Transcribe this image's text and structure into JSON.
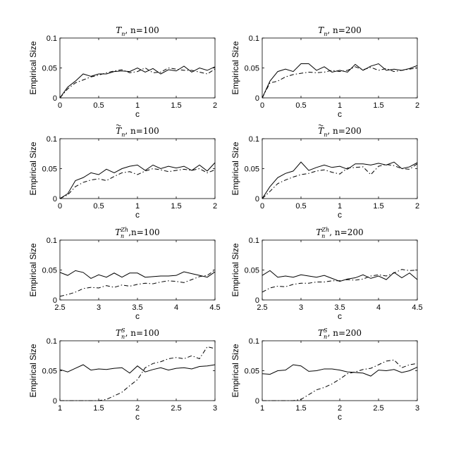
{
  "chart_data": [
    {
      "type": "line",
      "title": "T_n, n=100",
      "title_main": "T",
      "title_sub": "n",
      "title_sup": "",
      "title_tilde": false,
      "title_rest": ", n=100",
      "xlabel": "c",
      "ylabel": "Empirical Size",
      "xlim": [
        0,
        2
      ],
      "ylim": [
        0,
        0.1
      ],
      "xticks": [
        "0",
        "0.5",
        "1",
        "1.5",
        "2"
      ],
      "yticks": [
        "0",
        "0.05",
        "0.1"
      ],
      "series": [
        {
          "style": "solid",
          "x": [
            0,
            0.1,
            0.2,
            0.3,
            0.4,
            0.5,
            0.6,
            0.7,
            0.8,
            0.9,
            1.0,
            1.1,
            1.2,
            1.3,
            1.4,
            1.5,
            1.6,
            1.7,
            1.8,
            1.9,
            2.0
          ],
          "values": [
            0,
            0.018,
            0.028,
            0.04,
            0.036,
            0.04,
            0.04,
            0.044,
            0.045,
            0.044,
            0.05,
            0.043,
            0.049,
            0.04,
            0.047,
            0.045,
            0.053,
            0.043,
            0.05,
            0.046,
            0.052
          ]
        },
        {
          "style": "dashdot",
          "x": [
            0,
            0.1,
            0.2,
            0.3,
            0.4,
            0.5,
            0.6,
            0.7,
            0.8,
            0.9,
            1.0,
            1.1,
            1.2,
            1.3,
            1.4,
            1.5,
            1.6,
            1.7,
            1.8,
            1.9,
            2.0
          ],
          "values": [
            0,
            0.015,
            0.025,
            0.03,
            0.035,
            0.038,
            0.042,
            0.045,
            0.047,
            0.042,
            0.044,
            0.05,
            0.042,
            0.043,
            0.05,
            0.048,
            0.046,
            0.046,
            0.043,
            0.04,
            0.048
          ]
        }
      ]
    },
    {
      "type": "line",
      "title": "T_n, n=200",
      "title_main": "T",
      "title_sub": "n",
      "title_sup": "",
      "title_tilde": false,
      "title_rest": ", n=200",
      "xlabel": "c",
      "ylabel": "Empirical Size",
      "xlim": [
        0,
        2
      ],
      "ylim": [
        0,
        0.1
      ],
      "xticks": [
        "0",
        "0.5",
        "1",
        "1.5",
        "2"
      ],
      "yticks": [
        "0",
        "0.05",
        "0.1"
      ],
      "series": [
        {
          "style": "solid",
          "x": [
            0,
            0.1,
            0.2,
            0.3,
            0.4,
            0.5,
            0.6,
            0.7,
            0.8,
            0.9,
            1.0,
            1.1,
            1.2,
            1.3,
            1.4,
            1.5,
            1.6,
            1.7,
            1.8,
            1.9,
            2.0
          ],
          "values": [
            0,
            0.028,
            0.044,
            0.048,
            0.044,
            0.057,
            0.057,
            0.046,
            0.052,
            0.043,
            0.046,
            0.043,
            0.056,
            0.046,
            0.053,
            0.057,
            0.046,
            0.048,
            0.046,
            0.049,
            0.054
          ]
        },
        {
          "style": "dashdot",
          "x": [
            0,
            0.1,
            0.2,
            0.3,
            0.4,
            0.5,
            0.6,
            0.7,
            0.8,
            0.9,
            1.0,
            1.1,
            1.2,
            1.3,
            1.4,
            1.5,
            1.6,
            1.7,
            1.8,
            1.9,
            2.0
          ],
          "values": [
            0,
            0.025,
            0.028,
            0.035,
            0.039,
            0.041,
            0.043,
            0.042,
            0.043,
            0.046,
            0.044,
            0.046,
            0.052,
            0.047,
            0.051,
            0.046,
            0.049,
            0.044,
            0.046,
            0.048,
            0.05
          ]
        }
      ]
    },
    {
      "type": "line",
      "title": "T~_n, n=100",
      "title_main": "T",
      "title_sub": "n",
      "title_sup": "",
      "title_tilde": true,
      "title_rest": ", n=100",
      "xlabel": "c",
      "ylabel": "Empirical Size",
      "xlim": [
        0,
        2
      ],
      "ylim": [
        0,
        0.1
      ],
      "xticks": [
        "0",
        "0.5",
        "1",
        "1.5",
        "2"
      ],
      "yticks": [
        "0",
        "0.05",
        "0.1"
      ],
      "series": [
        {
          "style": "solid",
          "x": [
            0,
            0.1,
            0.2,
            0.3,
            0.4,
            0.5,
            0.6,
            0.7,
            0.8,
            0.9,
            1.0,
            1.1,
            1.2,
            1.3,
            1.4,
            1.5,
            1.6,
            1.7,
            1.8,
            1.9,
            2.0
          ],
          "values": [
            0,
            0.008,
            0.03,
            0.035,
            0.043,
            0.04,
            0.049,
            0.043,
            0.05,
            0.054,
            0.056,
            0.047,
            0.056,
            0.05,
            0.054,
            0.051,
            0.054,
            0.047,
            0.056,
            0.046,
            0.06
          ]
        },
        {
          "style": "dashdot",
          "x": [
            0,
            0.1,
            0.2,
            0.3,
            0.4,
            0.5,
            0.6,
            0.7,
            0.8,
            0.9,
            1.0,
            1.1,
            1.2,
            1.3,
            1.4,
            1.5,
            1.6,
            1.7,
            1.8,
            1.9,
            2.0
          ],
          "values": [
            0,
            0.006,
            0.02,
            0.027,
            0.031,
            0.033,
            0.03,
            0.037,
            0.043,
            0.045,
            0.04,
            0.046,
            0.05,
            0.048,
            0.045,
            0.047,
            0.049,
            0.047,
            0.05,
            0.043,
            0.048
          ]
        }
      ]
    },
    {
      "type": "line",
      "title": "T~_n, n=200",
      "title_main": "T",
      "title_sub": "n",
      "title_sup": "",
      "title_tilde": true,
      "title_rest": ", n=200",
      "xlabel": "c",
      "ylabel": "Empirical Size",
      "xlim": [
        0,
        2
      ],
      "ylim": [
        0,
        0.1
      ],
      "xticks": [
        "0",
        "0.5",
        "1",
        "1.5",
        "2"
      ],
      "yticks": [
        "0",
        "0.05",
        "0.1"
      ],
      "series": [
        {
          "style": "solid",
          "x": [
            0,
            0.1,
            0.2,
            0.3,
            0.4,
            0.5,
            0.6,
            0.7,
            0.8,
            0.9,
            1.0,
            1.1,
            1.2,
            1.3,
            1.4,
            1.5,
            1.6,
            1.7,
            1.8,
            1.9,
            2.0
          ],
          "values": [
            0,
            0.02,
            0.035,
            0.042,
            0.046,
            0.061,
            0.047,
            0.052,
            0.056,
            0.052,
            0.054,
            0.049,
            0.058,
            0.058,
            0.056,
            0.059,
            0.056,
            0.061,
            0.05,
            0.053,
            0.06
          ]
        },
        {
          "style": "dashdot",
          "x": [
            0,
            0.1,
            0.2,
            0.3,
            0.4,
            0.5,
            0.6,
            0.7,
            0.8,
            0.9,
            1.0,
            1.1,
            1.2,
            1.3,
            1.4,
            1.5,
            1.6,
            1.7,
            1.8,
            1.9,
            2.0
          ],
          "values": [
            0,
            0.012,
            0.025,
            0.031,
            0.036,
            0.04,
            0.042,
            0.046,
            0.048,
            0.044,
            0.041,
            0.051,
            0.052,
            0.053,
            0.04,
            0.054,
            0.057,
            0.055,
            0.05,
            0.049,
            0.058
          ]
        }
      ]
    },
    {
      "type": "line",
      "title": "T_n^{Zh},n=100",
      "title_main": "T",
      "title_sub": "n",
      "title_sup": "Zh",
      "title_tilde": false,
      "title_rest": ",n=100",
      "xlabel": "c",
      "ylabel": "Empirical Size",
      "xlim": [
        2.5,
        4.5
      ],
      "ylim": [
        0,
        0.1
      ],
      "xticks": [
        "2.5",
        "3",
        "3.5",
        "4",
        "4.5"
      ],
      "yticks": [
        "0",
        "0.05",
        "0.1"
      ],
      "series": [
        {
          "style": "solid",
          "x": [
            2.5,
            2.6,
            2.7,
            2.8,
            2.9,
            3.0,
            3.1,
            3.2,
            3.3,
            3.4,
            3.5,
            3.6,
            3.7,
            3.8,
            3.9,
            4.0,
            4.1,
            4.2,
            4.3,
            4.4,
            4.5
          ],
          "values": [
            0.046,
            0.041,
            0.049,
            0.046,
            0.036,
            0.042,
            0.038,
            0.045,
            0.038,
            0.045,
            0.045,
            0.038,
            0.039,
            0.04,
            0.04,
            0.041,
            0.047,
            0.044,
            0.041,
            0.038,
            0.047
          ]
        },
        {
          "style": "dashdot",
          "x": [
            2.5,
            2.6,
            2.7,
            2.8,
            2.9,
            3.0,
            3.1,
            3.2,
            3.3,
            3.4,
            3.5,
            3.6,
            3.7,
            3.8,
            3.9,
            4.0,
            4.1,
            4.2,
            4.3,
            4.4,
            4.5
          ],
          "values": [
            0.006,
            0.009,
            0.013,
            0.019,
            0.021,
            0.02,
            0.024,
            0.021,
            0.025,
            0.023,
            0.026,
            0.028,
            0.027,
            0.03,
            0.032,
            0.031,
            0.029,
            0.034,
            0.039,
            0.041,
            0.05
          ]
        }
      ]
    },
    {
      "type": "line",
      "title": "T_n^{Zh}, n=200",
      "title_main": "T",
      "title_sub": "n",
      "title_sup": "Zh",
      "title_tilde": false,
      "title_rest": ", n=200",
      "xlabel": "c",
      "ylabel": "Empirical Size",
      "xlim": [
        2.5,
        4.5
      ],
      "ylim": [
        0,
        0.1
      ],
      "xticks": [
        "2.5",
        "3",
        "3.5",
        "4",
        "4.5"
      ],
      "yticks": [
        "0",
        "0.05",
        "0.1"
      ],
      "series": [
        {
          "style": "solid",
          "x": [
            2.5,
            2.6,
            2.7,
            2.8,
            2.9,
            3.0,
            3.1,
            3.2,
            3.3,
            3.4,
            3.5,
            3.6,
            3.7,
            3.8,
            3.9,
            4.0,
            4.1,
            4.2,
            4.3,
            4.4,
            4.5
          ],
          "values": [
            0.041,
            0.049,
            0.038,
            0.04,
            0.038,
            0.042,
            0.04,
            0.038,
            0.041,
            0.036,
            0.031,
            0.035,
            0.037,
            0.042,
            0.036,
            0.04,
            0.034,
            0.046,
            0.037,
            0.045,
            0.034
          ]
        },
        {
          "style": "dashdot",
          "x": [
            2.5,
            2.6,
            2.7,
            2.8,
            2.9,
            3.0,
            3.1,
            3.2,
            3.3,
            3.4,
            3.5,
            3.6,
            3.7,
            3.8,
            3.9,
            4.0,
            4.1,
            4.2,
            4.3,
            4.4,
            4.5
          ],
          "values": [
            0.013,
            0.02,
            0.023,
            0.022,
            0.026,
            0.028,
            0.028,
            0.03,
            0.03,
            0.032,
            0.032,
            0.034,
            0.033,
            0.035,
            0.04,
            0.042,
            0.04,
            0.045,
            0.051,
            0.049,
            0.05
          ]
        }
      ]
    },
    {
      "type": "line",
      "title": "T_n^S, n=100",
      "title_main": "T",
      "title_sub": "n",
      "title_sup": "S",
      "title_tilde": false,
      "title_rest": ", n=100",
      "xlabel": "c",
      "ylabel": "Empirical Size",
      "xlim": [
        1,
        3
      ],
      "ylim": [
        0,
        0.1
      ],
      "xticks": [
        "1",
        "1.5",
        "2",
        "2.5",
        "3"
      ],
      "yticks": [
        "0",
        "0.05",
        "0.1"
      ],
      "series": [
        {
          "style": "solid",
          "x": [
            1.0,
            1.1,
            1.2,
            1.3,
            1.4,
            1.5,
            1.6,
            1.7,
            1.8,
            1.9,
            2.0,
            2.1,
            2.2,
            2.3,
            2.4,
            2.5,
            2.6,
            2.7,
            2.8,
            2.9,
            3.0
          ],
          "values": [
            0.052,
            0.048,
            0.054,
            0.06,
            0.051,
            0.053,
            0.052,
            0.054,
            0.055,
            0.046,
            0.058,
            0.048,
            0.052,
            0.055,
            0.051,
            0.054,
            0.055,
            0.053,
            0.057,
            0.058,
            0.06
          ]
        },
        {
          "style": "dashdot",
          "x": [
            1.0,
            1.1,
            1.2,
            1.3,
            1.4,
            1.5,
            1.6,
            1.7,
            1.8,
            1.9,
            2.0,
            2.1,
            2.2,
            2.3,
            2.4,
            2.5,
            2.6,
            2.7,
            2.8,
            2.9,
            3.0
          ],
          "values": [
            0,
            0,
            0,
            0,
            0,
            0,
            0.002,
            0.008,
            0.014,
            0.025,
            0.035,
            0.055,
            0.062,
            0.065,
            0.07,
            0.072,
            0.07,
            0.075,
            0.07,
            0.09,
            0.087
          ]
        }
      ]
    },
    {
      "type": "line",
      "title": "T_n^S, n=200",
      "title_main": "T",
      "title_sub": "n",
      "title_sup": "S",
      "title_tilde": false,
      "title_rest": ", n=200",
      "xlabel": "c",
      "ylabel": "Empirical Size",
      "xlim": [
        1,
        3
      ],
      "ylim": [
        0,
        0.1
      ],
      "xticks": [
        "1",
        "1.5",
        "2",
        "2.5",
        "3"
      ],
      "yticks": [
        "0",
        "0.05",
        "0.1"
      ],
      "series": [
        {
          "style": "solid",
          "x": [
            1.0,
            1.1,
            1.2,
            1.3,
            1.4,
            1.5,
            1.6,
            1.7,
            1.8,
            1.9,
            2.0,
            2.1,
            2.2,
            2.3,
            2.4,
            2.5,
            2.6,
            2.7,
            2.8,
            2.9,
            3.0
          ],
          "values": [
            0.045,
            0.044,
            0.05,
            0.051,
            0.06,
            0.058,
            0.049,
            0.05,
            0.053,
            0.053,
            0.051,
            0.048,
            0.047,
            0.046,
            0.041,
            0.051,
            0.05,
            0.052,
            0.047,
            0.05,
            0.056
          ]
        },
        {
          "style": "dashdot",
          "x": [
            1.0,
            1.1,
            1.2,
            1.3,
            1.4,
            1.5,
            1.6,
            1.7,
            1.8,
            1.9,
            2.0,
            2.1,
            2.2,
            2.3,
            2.4,
            2.5,
            2.6,
            2.7,
            2.8,
            2.9,
            3.0
          ],
          "values": [
            0,
            0,
            0,
            0,
            0,
            0.002,
            0.01,
            0.018,
            0.022,
            0.028,
            0.036,
            0.045,
            0.048,
            0.052,
            0.054,
            0.06,
            0.066,
            0.068,
            0.055,
            0.06,
            0.062
          ]
        }
      ]
    }
  ]
}
